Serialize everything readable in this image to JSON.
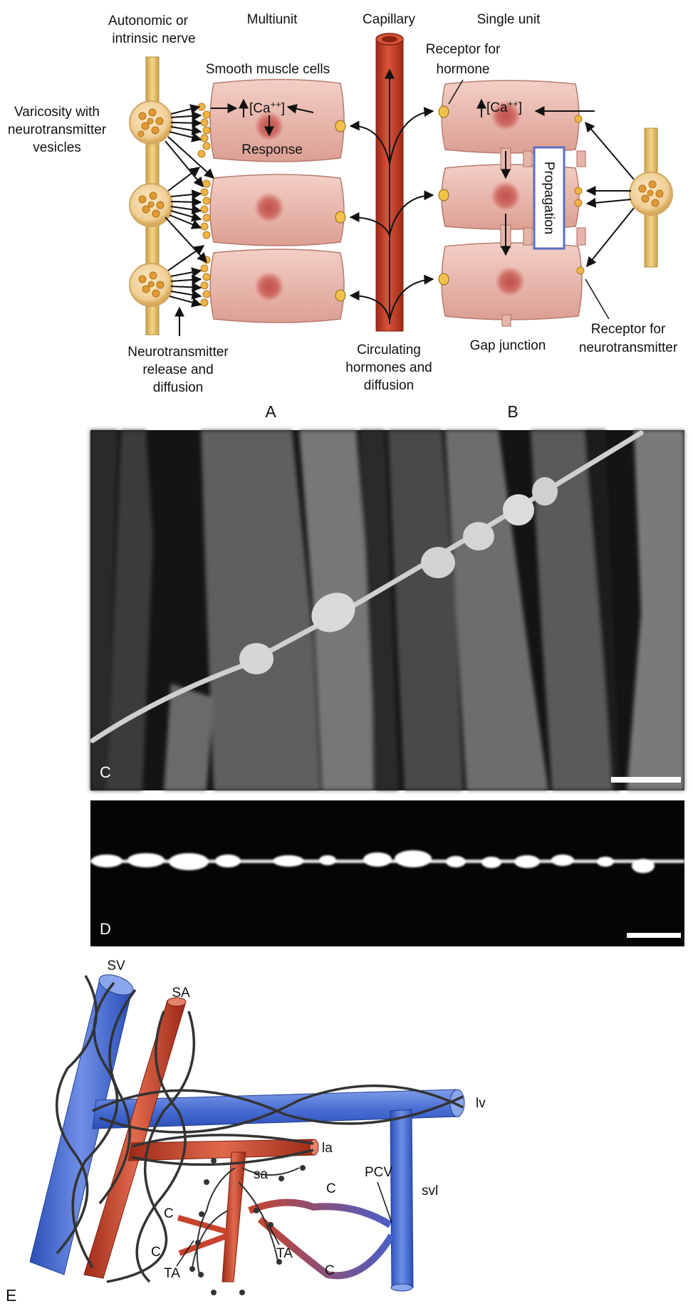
{
  "panel_a": {
    "letter": "A",
    "header": "Multiunit",
    "nerve_label_1": "Autonomic or",
    "nerve_label_2": "intrinsic nerve",
    "smooth_muscle_label": "Smooth muscle cells",
    "varicosity_label_1": "Varicosity with",
    "varicosity_label_2": "neurotransmitter",
    "varicosity_label_3": "vesicles",
    "ca_label": "[Ca++]",
    "response_label": "Response",
    "release_label_1": "Neurotransmitter",
    "release_label_2": "release and",
    "release_label_3": "diffusion"
  },
  "capillary": {
    "header": "Capillary",
    "circ_label_1": "Circulating",
    "circ_label_2": "hormones and",
    "circ_label_3": "diffusion"
  },
  "panel_b": {
    "letter": "B",
    "header": "Single unit",
    "receptor_hormone_1": "Receptor for",
    "receptor_hormone_2": "hormone",
    "ca_label": "[Ca++]",
    "propagation_label": "Propagation",
    "gap_junction_label": "Gap junction",
    "receptor_nt_1": "Receptor for",
    "receptor_nt_2": "neurotransmitter"
  },
  "panel_c": {
    "letter": "C"
  },
  "panel_d": {
    "letter": "D"
  },
  "panel_e": {
    "letter": "E",
    "labels": {
      "sv": "SV",
      "sa_upper": "SA",
      "lv": "lv",
      "la": "la",
      "sa_lower": "sa",
      "c1": "C",
      "c2": "C",
      "c3": "C",
      "c4": "C",
      "pcv": "PCV",
      "svl": "svl",
      "ta1": "TA",
      "ta2": "TA"
    }
  },
  "colors": {
    "muscle_cell": "#e9b8ad",
    "nucleus": "#c8655e",
    "nerve": "#e3c270",
    "capillary": "#c7412a",
    "vein_blue": "#4a6fd4",
    "artery_red": "#c8432c",
    "propagation_border": "#5b6cc4"
  }
}
